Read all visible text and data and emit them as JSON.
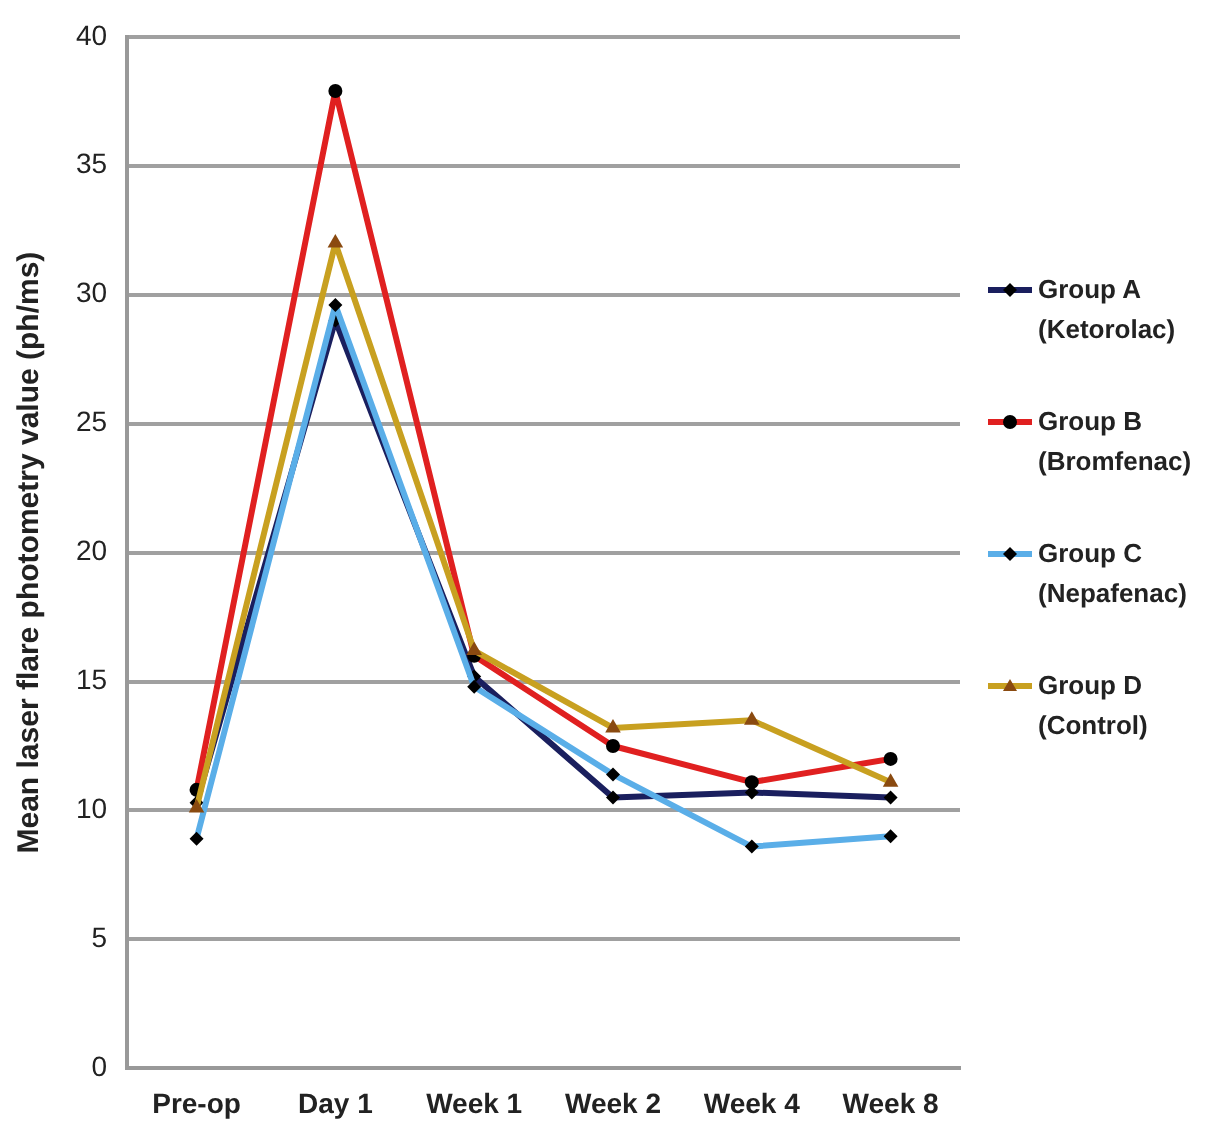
{
  "chart_data": {
    "type": "line",
    "ylabel": "Mean laser flare photometry value (ph/ms)",
    "categories": [
      "Pre-op",
      "Day 1",
      "Week 1",
      "Week 2",
      "Week 4",
      "Week 8"
    ],
    "series": [
      {
        "name": "Group A (Ketorolac)",
        "color": "#1a1f5e",
        "marker": "diamond",
        "values": [
          10.3,
          29.0,
          15.2,
          10.5,
          10.7,
          10.5
        ]
      },
      {
        "name": "Group B (Bromfenac)",
        "color": "#e02020",
        "marker": "circle",
        "values": [
          10.8,
          37.9,
          16.0,
          12.5,
          11.1,
          12.0
        ]
      },
      {
        "name": "Group C (Nepafenac)",
        "color": "#5aaee8",
        "marker": "diamond",
        "values": [
          8.9,
          29.6,
          14.8,
          11.4,
          8.6,
          9.0
        ]
      },
      {
        "name": "Group D (Control)",
        "color": "#c8a020",
        "marker": "triangle",
        "values": [
          10.1,
          32.0,
          16.2,
          13.2,
          13.5,
          11.1
        ]
      }
    ],
    "ylim": [
      0,
      40
    ],
    "yticks": [
      0,
      5,
      10,
      15,
      20,
      25,
      30,
      35,
      40
    ],
    "grid": "y",
    "legend": "right"
  }
}
